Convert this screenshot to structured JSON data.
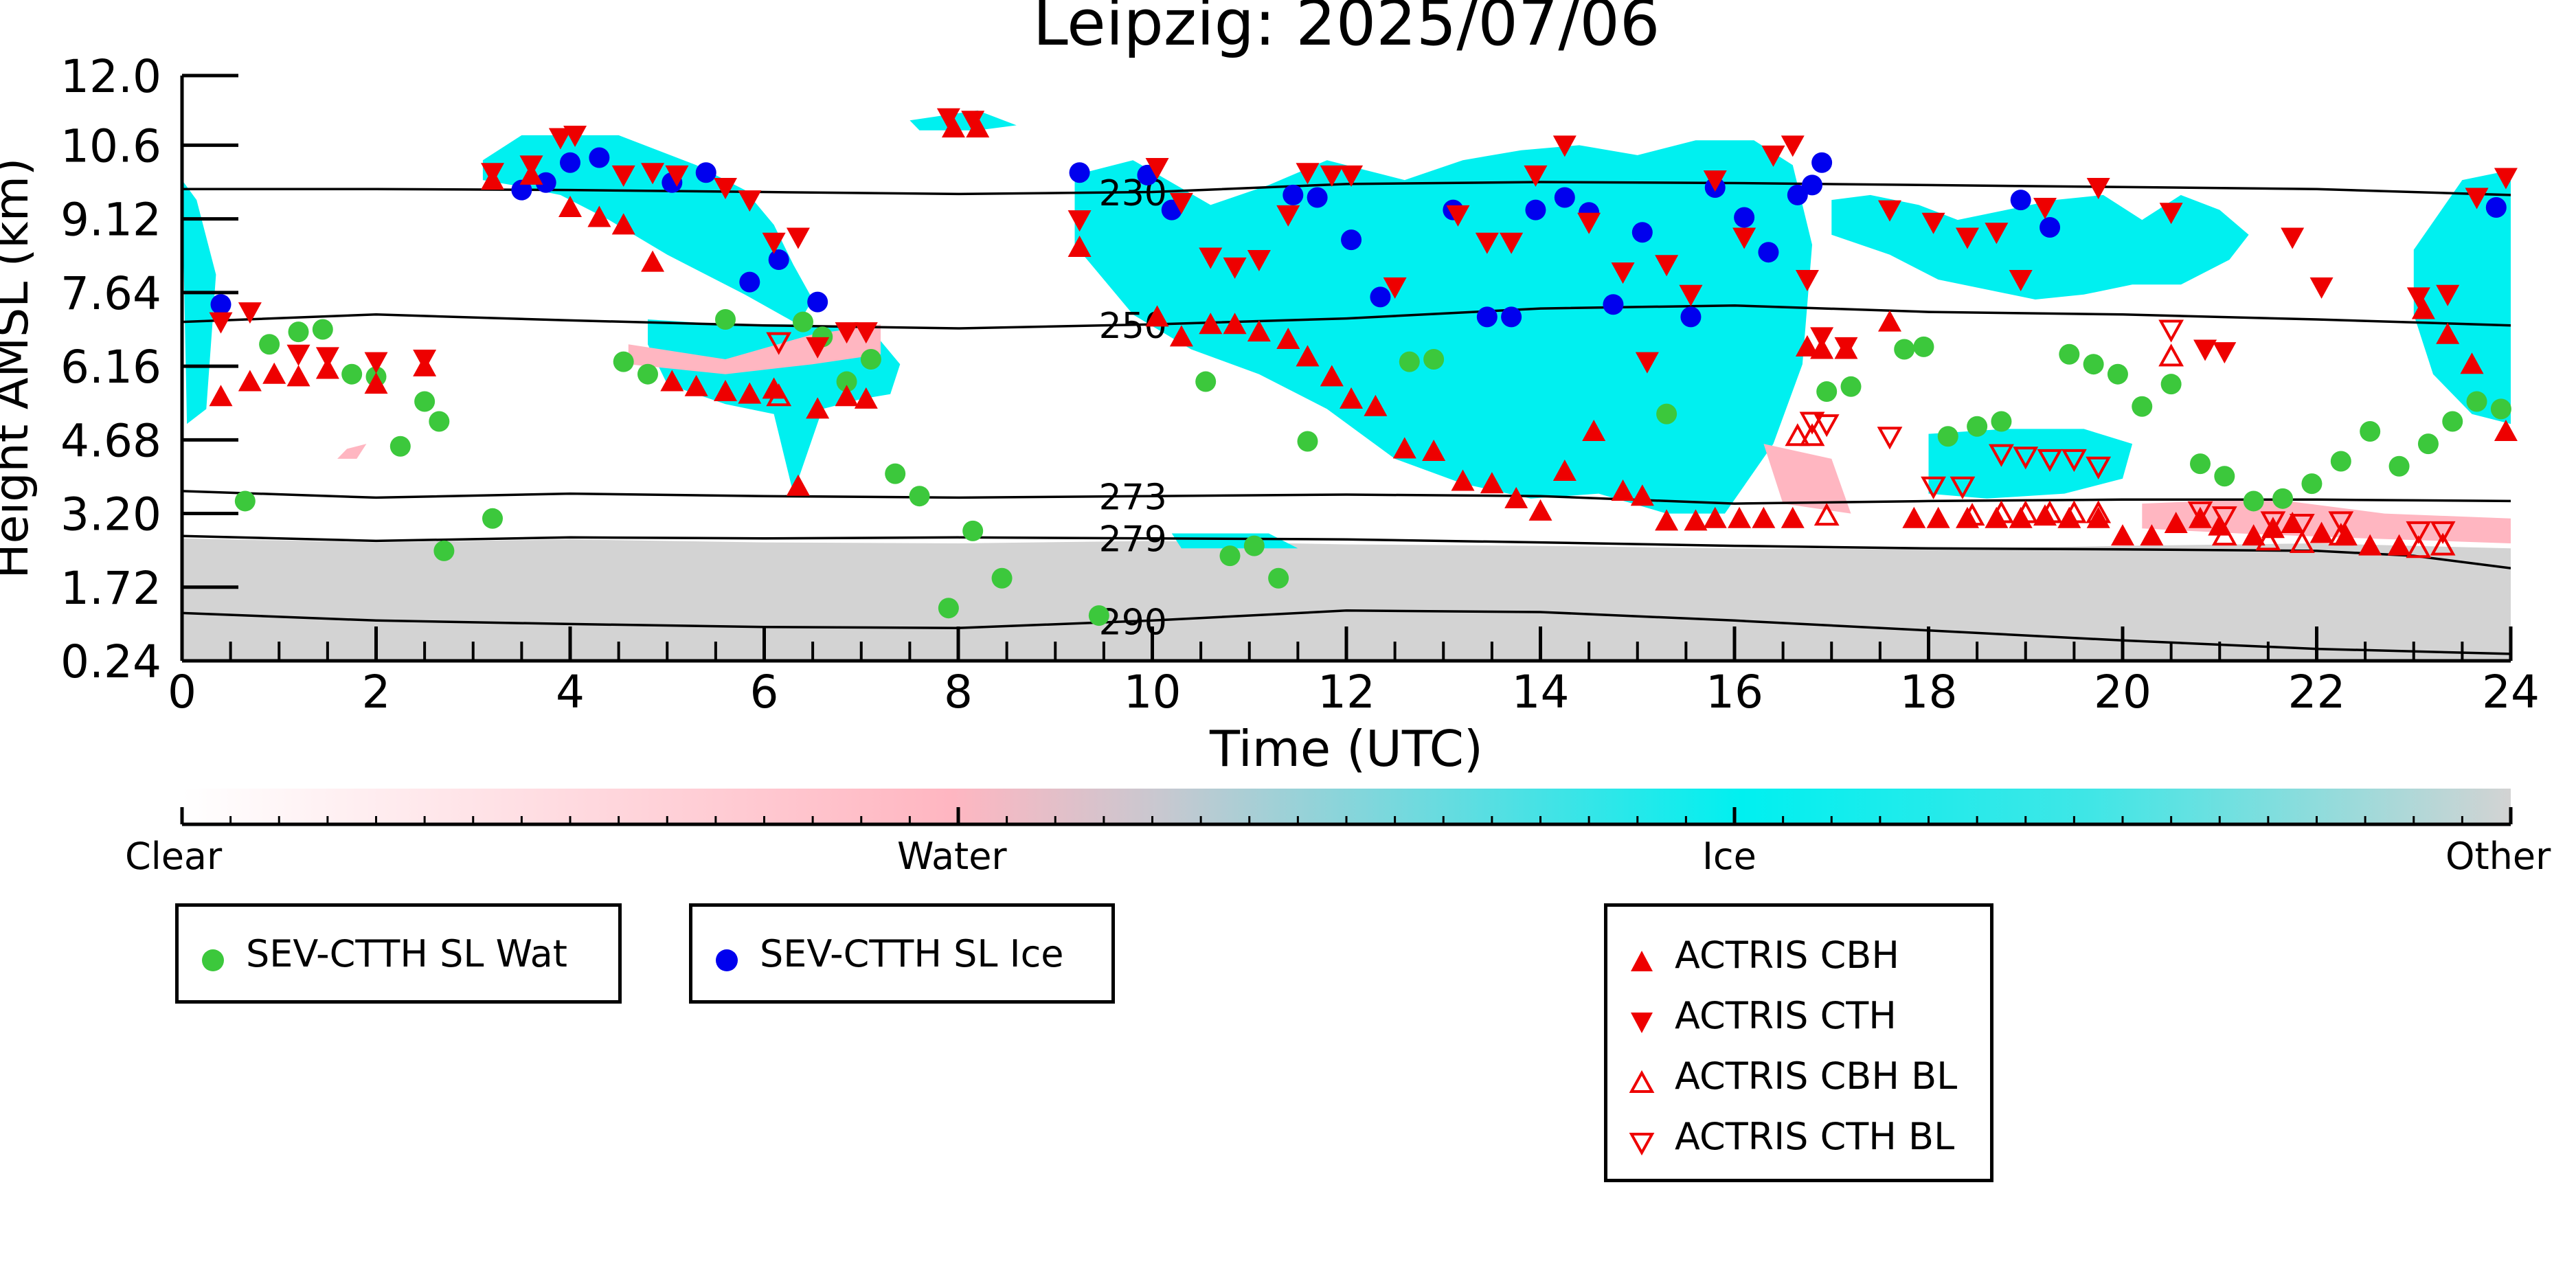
{
  "chart_data": {
    "type": "scatter",
    "title": "Leipzig: 2025/07/06",
    "xlabel": "Time (UTC)",
    "ylabel": "Height AMSL (km)",
    "xlim": [
      0,
      24
    ],
    "ylim": [
      0.24,
      12.0
    ],
    "xticks": [
      "0",
      "2",
      "4",
      "6",
      "8",
      "10",
      "12",
      "14",
      "16",
      "18",
      "20",
      "22",
      "24"
    ],
    "yticks": [
      "0.24",
      "1.72",
      "3.20",
      "4.68",
      "6.16",
      "7.64",
      "9.12",
      "10.6",
      "12.0"
    ],
    "colors": {
      "clear": "#ffffff",
      "water": "#ffb6c1",
      "ice": "#00f0f0",
      "other": "#d3d3d3",
      "sev_wat": "#3cc83c",
      "sev_ice": "#0000ee",
      "actris": "#ee0000",
      "contour": "#000000"
    },
    "colorbar": {
      "labels": [
        "Clear",
        "Water",
        "Ice",
        "Other"
      ]
    },
    "contours": [
      {
        "label": "230",
        "x": [
          0,
          2,
          4,
          6,
          8,
          10,
          12,
          14,
          16,
          18,
          20,
          22,
          24
        ],
        "y": [
          9.72,
          9.72,
          9.7,
          9.66,
          9.62,
          9.66,
          9.82,
          9.86,
          9.84,
          9.8,
          9.76,
          9.72,
          9.6
        ]
      },
      {
        "label": "250",
        "x": [
          0,
          2,
          4,
          6,
          8,
          10,
          12,
          14,
          16,
          18,
          20,
          22,
          24
        ],
        "y": [
          7.05,
          7.2,
          7.08,
          6.98,
          6.92,
          7.0,
          7.12,
          7.32,
          7.38,
          7.25,
          7.2,
          7.1,
          6.98
        ]
      },
      {
        "label": "273",
        "x": [
          0,
          2,
          4,
          6,
          8,
          10,
          12,
          14,
          16,
          18,
          20,
          22,
          24
        ],
        "y": [
          3.65,
          3.52,
          3.6,
          3.55,
          3.52,
          3.55,
          3.58,
          3.55,
          3.4,
          3.45,
          3.48,
          3.48,
          3.45
        ]
      },
      {
        "label": "279",
        "x": [
          0,
          2,
          4,
          6,
          8,
          10,
          12,
          14,
          16,
          18,
          20,
          22,
          23,
          24
        ],
        "y": [
          2.75,
          2.65,
          2.72,
          2.7,
          2.72,
          2.7,
          2.68,
          2.62,
          2.55,
          2.5,
          2.48,
          2.45,
          2.35,
          2.1
        ]
      },
      {
        "label": "290",
        "x": [
          0,
          2,
          4,
          6,
          8,
          10,
          12,
          14,
          16,
          18,
          20,
          22,
          24
        ],
        "y": [
          1.2,
          1.05,
          0.98,
          0.92,
          0.9,
          1.05,
          1.25,
          1.22,
          1.05,
          0.85,
          0.65,
          0.48,
          0.38
        ]
      }
    ],
    "regions": [
      {
        "phase": "other",
        "x": [
          0,
          2,
          4,
          6,
          8,
          10,
          12,
          14,
          16,
          18,
          20,
          22,
          24,
          24,
          0
        ],
        "y": [
          2.7,
          2.62,
          2.68,
          2.62,
          2.6,
          2.65,
          2.58,
          2.55,
          2.5,
          2.48,
          2.55,
          2.6,
          2.5,
          0.24,
          0.24
        ]
      },
      {
        "phase": "ice",
        "x": [
          0,
          0.15,
          0.35,
          0.25,
          0.05
        ],
        "y": [
          9.9,
          9.5,
          8.0,
          5.3,
          5.0
        ]
      },
      {
        "phase": "ice",
        "x": [
          3.1,
          3.5,
          4.5,
          5.3,
          5.8,
          6.1,
          6.3,
          6.5,
          6.35,
          5.8,
          5.0,
          4.4,
          3.9,
          3.4,
          3.1
        ],
        "y": [
          10.3,
          10.8,
          10.8,
          10.2,
          9.7,
          9.0,
          8.2,
          7.5,
          7.0,
          7.6,
          8.4,
          9.1,
          9.6,
          9.8,
          9.9
        ]
      },
      {
        "phase": "ice",
        "x": [
          4.8,
          5.6,
          6.4,
          7.1,
          7.4,
          7.3,
          7.0,
          6.6,
          6.3,
          6.1,
          5.6,
          5.0,
          4.8
        ],
        "y": [
          7.1,
          7.0,
          7.0,
          6.9,
          6.2,
          5.6,
          5.5,
          5.3,
          3.6,
          5.2,
          5.4,
          5.8,
          6.6
        ]
      },
      {
        "phase": "ice",
        "x": [
          9.2,
          9.8,
          10.6,
          11.2,
          11.8,
          12.2,
          12.6,
          13.2,
          13.8,
          14.4,
          15.0,
          15.6,
          16.2,
          16.6,
          16.8,
          16.7,
          16.4,
          15.9,
          15.3,
          14.6,
          13.9,
          13.2,
          12.5,
          11.8,
          11.1,
          10.4,
          9.8,
          9.2
        ],
        "y": [
          10.0,
          10.3,
          9.4,
          9.8,
          10.3,
          10.1,
          9.9,
          10.3,
          10.5,
          10.6,
          10.4,
          10.7,
          10.7,
          10.2,
          8.6,
          6.2,
          4.6,
          3.2,
          3.2,
          3.6,
          3.5,
          3.8,
          4.3,
          5.3,
          6.0,
          6.5,
          7.2,
          8.6
        ]
      },
      {
        "phase": "ice",
        "x": [
          17.0,
          17.4,
          17.9,
          18.3,
          18.8,
          19.3,
          19.8,
          20.2,
          20.6,
          21.0,
          21.3,
          21.1,
          20.6,
          20.1,
          19.6,
          19.1,
          18.6,
          18.1,
          17.6,
          17.0
        ],
        "y": [
          9.5,
          9.6,
          9.4,
          9.1,
          9.3,
          9.5,
          9.6,
          9.1,
          9.6,
          9.3,
          8.8,
          8.3,
          7.8,
          7.8,
          7.6,
          7.5,
          7.7,
          7.9,
          8.4,
          8.8
        ]
      },
      {
        "phase": "ice",
        "x": [
          18.0,
          18.8,
          19.6,
          20.1,
          20.0,
          19.4,
          18.6,
          18.0
        ],
        "y": [
          4.8,
          4.9,
          4.9,
          4.6,
          3.9,
          3.6,
          3.5,
          3.6
        ]
      },
      {
        "phase": "ice",
        "x": [
          23.0,
          23.5,
          24.0,
          24.0,
          23.6,
          23.2,
          23.0
        ],
        "y": [
          8.5,
          9.9,
          10.1,
          5.0,
          5.2,
          6.0,
          7.2
        ]
      },
      {
        "phase": "ice",
        "x": [
          7.5,
          8.2,
          8.6,
          8.2,
          7.6
        ],
        "y": [
          11.1,
          11.3,
          11.0,
          10.9,
          10.9
        ]
      },
      {
        "phase": "ice",
        "x": [
          10.2,
          11.2,
          11.5,
          10.3
        ],
        "y": [
          2.8,
          2.8,
          2.5,
          2.5
        ]
      },
      {
        "phase": "water",
        "x": [
          4.6,
          5.6,
          6.5,
          7.2,
          7.2,
          6.5,
          5.6,
          4.6
        ],
        "y": [
          6.6,
          6.3,
          6.8,
          7.0,
          6.4,
          6.2,
          6.0,
          6.2
        ]
      },
      {
        "phase": "water",
        "x": [
          16.3,
          17.0,
          17.2,
          16.5
        ],
        "y": [
          4.6,
          4.3,
          3.2,
          3.4
        ]
      },
      {
        "phase": "water",
        "x": [
          20.2,
          21.5,
          22.7,
          24.0,
          24.0,
          22.5,
          21.2,
          20.2
        ],
        "y": [
          3.4,
          3.5,
          3.2,
          3.1,
          2.6,
          2.7,
          2.8,
          2.9
        ]
      },
      {
        "phase": "water",
        "x": [
          1.7,
          1.9,
          1.8,
          1.6
        ],
        "y": [
          4.5,
          4.6,
          4.3,
          4.3
        ]
      }
    ],
    "series": [
      {
        "name": "SEV-CTTH SL Wat",
        "marker": "circle",
        "x": [
          0.65,
          0.9,
          1.2,
          1.45,
          1.75,
          2.0,
          2.25,
          2.5,
          2.65,
          2.7,
          3.2,
          4.55,
          4.8,
          5.6,
          6.4,
          6.6,
          6.85,
          7.1,
          7.35,
          7.6,
          7.9,
          8.15,
          8.45,
          9.45,
          10.55,
          10.8,
          11.05,
          11.3,
          11.6,
          12.65,
          12.9,
          15.3,
          16.95,
          17.2,
          17.75,
          17.95,
          18.2,
          18.5,
          18.75,
          19.45,
          19.7,
          19.95,
          20.2,
          20.5,
          20.8,
          21.05,
          21.35,
          21.65,
          21.95,
          22.25,
          22.55,
          22.85,
          23.15,
          23.4,
          23.65,
          23.9
        ],
        "y": [
          3.45,
          6.6,
          6.85,
          6.9,
          6.0,
          5.95,
          4.55,
          5.45,
          5.05,
          2.45,
          3.1,
          6.25,
          6.0,
          7.1,
          7.05,
          6.75,
          5.85,
          6.3,
          4.0,
          3.55,
          1.3,
          2.85,
          1.9,
          1.15,
          5.85,
          2.35,
          2.55,
          1.9,
          4.65,
          6.25,
          6.3,
          5.2,
          5.65,
          5.75,
          6.5,
          6.55,
          4.75,
          4.95,
          5.05,
          6.4,
          6.2,
          6.0,
          5.35,
          5.8,
          4.2,
          3.95,
          3.45,
          3.5,
          3.8,
          4.25,
          4.85,
          4.15,
          4.6,
          5.05,
          5.45,
          5.3
        ]
      },
      {
        "name": "SEV-CTTH SL Ice",
        "marker": "circle",
        "x": [
          0.4,
          3.5,
          3.75,
          4.0,
          4.3,
          5.05,
          5.4,
          5.85,
          6.15,
          6.55,
          9.25,
          9.95,
          10.2,
          11.45,
          11.7,
          12.05,
          12.35,
          13.1,
          13.45,
          13.7,
          13.95,
          14.25,
          14.5,
          14.75,
          15.05,
          15.55,
          15.8,
          16.1,
          16.35,
          16.65,
          16.8,
          16.9,
          18.95,
          19.25,
          23.85
        ],
        "y": [
          7.4,
          9.7,
          9.85,
          10.25,
          10.35,
          9.85,
          10.05,
          7.85,
          8.3,
          7.45,
          10.05,
          10.0,
          9.3,
          9.6,
          9.55,
          8.7,
          7.55,
          9.3,
          7.15,
          7.15,
          9.3,
          9.55,
          9.25,
          7.4,
          8.85,
          7.15,
          9.75,
          9.15,
          8.45,
          9.6,
          9.8,
          10.25,
          9.5,
          8.95,
          9.35
        ]
      },
      {
        "name": "ACTRIS CBH",
        "marker": "triangle-up",
        "x": [
          0.4,
          0.7,
          0.95,
          1.2,
          1.5,
          2.0,
          2.5,
          3.2,
          3.6,
          4.0,
          4.3,
          4.55,
          4.85,
          5.05,
          5.3,
          5.6,
          5.85,
          6.1,
          6.35,
          6.55,
          6.85,
          7.05,
          7.95,
          8.2,
          9.25,
          10.05,
          10.3,
          10.6,
          10.85,
          11.1,
          11.4,
          11.6,
          11.85,
          12.05,
          12.3,
          12.6,
          12.9,
          13.2,
          13.5,
          13.75,
          14.0,
          14.25,
          14.55,
          14.85,
          15.05,
          15.3,
          15.6,
          15.8,
          16.05,
          16.3,
          16.6,
          16.75,
          16.9,
          17.15,
          17.6,
          17.85,
          18.1,
          18.4,
          18.7,
          18.95,
          19.2,
          19.45,
          19.75,
          20.0,
          20.3,
          20.55,
          20.8,
          21.0,
          21.35,
          21.55,
          21.75,
          22.05,
          22.3,
          22.55,
          22.85,
          23.1,
          23.35,
          23.6,
          23.95
        ],
        "y": [
          5.55,
          5.85,
          6.0,
          5.95,
          6.1,
          5.8,
          6.15,
          9.9,
          10.0,
          9.35,
          9.15,
          9.0,
          8.25,
          5.85,
          5.75,
          5.65,
          5.6,
          5.7,
          3.75,
          5.3,
          5.55,
          5.5,
          10.95,
          10.95,
          8.55,
          7.15,
          6.75,
          7.0,
          7.0,
          6.85,
          6.7,
          6.35,
          5.95,
          5.5,
          5.35,
          4.5,
          4.45,
          3.85,
          3.8,
          3.5,
          3.25,
          4.05,
          4.85,
          3.65,
          3.55,
          3.05,
          3.05,
          3.1,
          3.1,
          3.1,
          3.1,
          6.55,
          6.5,
          6.5,
          7.05,
          3.1,
          3.1,
          3.1,
          3.1,
          3.1,
          3.15,
          3.1,
          3.1,
          2.75,
          2.75,
          3.0,
          3.1,
          2.95,
          2.75,
          2.9,
          3.0,
          2.8,
          2.75,
          2.55,
          2.55,
          7.3,
          6.8,
          6.2,
          4.85
        ]
      },
      {
        "name": "ACTRIS CTH",
        "marker": "triangle-down",
        "x": [
          0.4,
          0.7,
          1.2,
          1.5,
          2.0,
          2.5,
          3.2,
          3.6,
          3.9,
          4.05,
          4.55,
          4.85,
          5.1,
          5.6,
          5.85,
          6.1,
          6.35,
          6.55,
          6.85,
          7.05,
          7.9,
          8.15,
          9.25,
          10.05,
          10.3,
          10.6,
          10.85,
          11.1,
          11.4,
          11.6,
          11.85,
          12.05,
          12.5,
          13.15,
          13.45,
          13.7,
          13.95,
          14.25,
          14.5,
          14.85,
          15.1,
          15.3,
          15.55,
          15.8,
          16.1,
          16.4,
          16.6,
          16.75,
          16.9,
          17.15,
          17.6,
          18.05,
          18.4,
          18.7,
          18.95,
          19.2,
          19.75,
          20.5,
          20.85,
          21.05,
          21.75,
          22.05,
          23.05,
          23.35,
          23.65,
          23.95
        ],
        "y": [
          7.05,
          7.25,
          6.4,
          6.35,
          6.25,
          6.3,
          10.05,
          10.2,
          10.75,
          10.8,
          10.0,
          10.05,
          10.0,
          9.75,
          9.5,
          8.65,
          8.75,
          6.55,
          6.85,
          6.85,
          11.15,
          11.1,
          9.1,
          10.15,
          9.45,
          8.35,
          8.15,
          8.3,
          9.2,
          10.05,
          10.0,
          10.0,
          7.75,
          9.2,
          8.65,
          8.65,
          10.0,
          10.6,
          9.05,
          8.05,
          6.25,
          8.2,
          7.6,
          9.9,
          8.75,
          10.4,
          10.6,
          7.9,
          6.75,
          6.55,
          9.3,
          9.05,
          8.75,
          8.85,
          7.9,
          9.35,
          9.75,
          9.25,
          6.5,
          6.45,
          8.75,
          7.75,
          7.55,
          7.6,
          9.55,
          9.95
        ]
      },
      {
        "name": "ACTRIS CBH BL",
        "marker": "triangle-up-open",
        "x": [
          6.15,
          16.65,
          16.8,
          16.95,
          18.45,
          18.75,
          19.0,
          19.25,
          19.5,
          19.75,
          20.5,
          21.05,
          21.5,
          21.85,
          22.25,
          23.05,
          23.3
        ],
        "y": [
          5.55,
          4.75,
          4.75,
          3.15,
          3.15,
          3.2,
          3.2,
          3.2,
          3.2,
          3.2,
          6.35,
          2.75,
          2.65,
          2.6,
          2.75,
          2.5,
          2.55
        ]
      },
      {
        "name": "ACTRIS CTH BL",
        "marker": "triangle-down-open",
        "x": [
          6.15,
          16.8,
          16.95,
          17.6,
          18.05,
          18.35,
          18.75,
          19.0,
          19.25,
          19.5,
          19.75,
          20.5,
          20.8,
          21.05,
          21.55,
          21.85,
          22.25,
          23.05,
          23.3
        ],
        "y": [
          6.65,
          5.05,
          5.0,
          4.75,
          3.75,
          3.75,
          4.4,
          4.35,
          4.3,
          4.3,
          4.15,
          6.9,
          3.25,
          3.15,
          3.05,
          3.0,
          3.05,
          2.85,
          2.85
        ]
      }
    ]
  },
  "legends": {
    "sev": [
      {
        "label": "SEV-CTTH SL Wat",
        "marker": "circle",
        "color": "#3cc83c"
      },
      {
        "label": "SEV-CTTH SL Ice",
        "marker": "circle",
        "color": "#0000ee"
      }
    ],
    "actris": [
      {
        "label": "ACTRIS CBH",
        "marker": "triangle-up"
      },
      {
        "label": "ACTRIS CTH",
        "marker": "triangle-down"
      },
      {
        "label": "ACTRIS CBH BL",
        "marker": "triangle-up-open"
      },
      {
        "label": "ACTRIS CTH BL",
        "marker": "triangle-down-open"
      }
    ]
  }
}
